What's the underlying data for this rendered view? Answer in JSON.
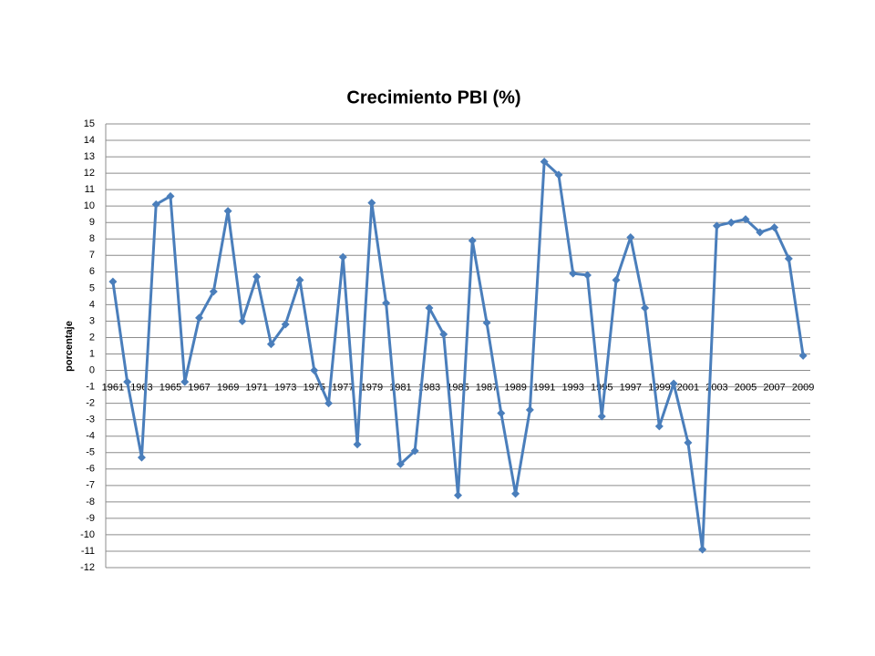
{
  "chart_data": {
    "type": "line",
    "title": "Crecimiento PBI (%)",
    "y_label": "porcentaje",
    "categories": [
      "1961",
      null,
      "1963",
      null,
      "1965",
      null,
      "1967",
      null,
      "1969",
      null,
      "1971",
      null,
      "1973",
      null,
      "1975",
      null,
      "1977",
      null,
      "1979",
      null,
      "1981",
      null,
      "1983",
      null,
      "1985",
      null,
      "1987",
      null,
      "1989",
      null,
      "1991",
      null,
      "1993",
      null,
      "1995",
      null,
      "1997",
      null,
      "1999",
      null,
      "2001",
      null,
      "2003",
      null,
      "2005",
      null,
      "2007",
      null,
      "2009"
    ],
    "series": [
      {
        "name": "Crecimiento PBI (%)",
        "color": "#4a7ebb",
        "values": [
          5.4,
          -0.7,
          -5.3,
          10.1,
          10.6,
          -0.7,
          3.2,
          4.8,
          9.7,
          3.0,
          5.7,
          1.6,
          2.8,
          5.5,
          0.0,
          -2.0,
          6.9,
          -4.5,
          10.2,
          4.1,
          -5.7,
          -4.9,
          3.8,
          2.2,
          -7.6,
          7.9,
          2.9,
          -2.6,
          -7.5,
          -2.4,
          12.7,
          11.9,
          5.9,
          5.8,
          -2.8,
          5.5,
          8.1,
          3.8,
          -3.4,
          -0.8,
          -4.4,
          -10.9,
          8.8,
          9.0,
          9.2,
          8.4,
          8.7,
          6.8,
          0.9
        ]
      }
    ],
    "ylim": [
      -12,
      15
    ],
    "yticks": [
      -12,
      -11,
      -10,
      -9,
      -8,
      -7,
      -6,
      -5,
      -4,
      -3,
      -2,
      -1,
      0,
      1,
      2,
      3,
      4,
      5,
      6,
      7,
      8,
      9,
      10,
      11,
      12,
      13,
      14,
      15
    ],
    "grid": true
  }
}
